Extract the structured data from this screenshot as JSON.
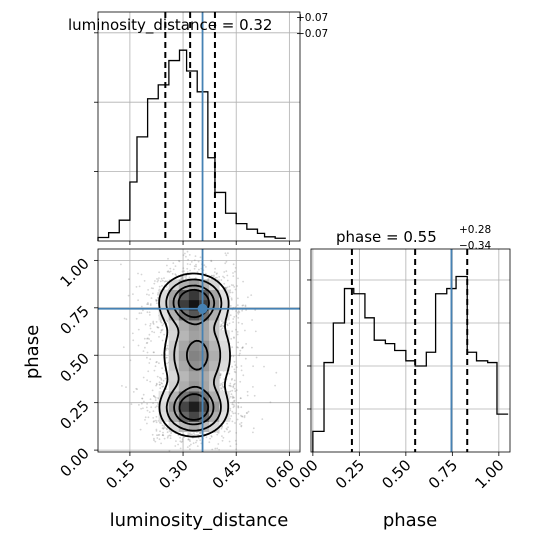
{
  "chart_data": [
    {
      "type": "histogram",
      "panel": "top-left",
      "title": {
        "param": "luminosity_distance",
        "median": "0.32",
        "plus": "+0.07",
        "minus": "−0.07"
      },
      "xlim": [
        0.06,
        0.63
      ],
      "ylim": [
        0,
        0.33
      ],
      "bin_edges": [
        0.06,
        0.09,
        0.12,
        0.15,
        0.17,
        0.2,
        0.23,
        0.26,
        0.29,
        0.31,
        0.34,
        0.37,
        0.39,
        0.42,
        0.45,
        0.48,
        0.51,
        0.53,
        0.56,
        0.59
      ],
      "counts": [
        0.005,
        0.012,
        0.03,
        0.085,
        0.15,
        0.205,
        0.225,
        0.26,
        0.275,
        0.245,
        0.215,
        0.12,
        0.07,
        0.04,
        0.025,
        0.017,
        0.011,
        0.006,
        0.004
      ],
      "quantiles": [
        0.25,
        0.32,
        0.39
      ],
      "truth": 0.355,
      "truth_color": "#4682b4"
    },
    {
      "type": "histogram",
      "panel": "bottom-right",
      "title": {
        "param": "phase",
        "median": "0.55",
        "plus": "+0.28",
        "minus": "−0.34"
      },
      "xlim": [
        -0.01,
        1.06
      ],
      "ylim": [
        0,
        1.18
      ],
      "xticks": [
        "0.00",
        "0.25",
        "0.50",
        "0.75",
        "1.00"
      ],
      "xticks_values": [
        0,
        0.25,
        0.5,
        0.75,
        1.0
      ],
      "xlabel": "phase",
      "bin_edges": [
        0.0,
        0.06,
        0.11,
        0.17,
        0.22,
        0.28,
        0.33,
        0.39,
        0.44,
        0.5,
        0.55,
        0.61,
        0.66,
        0.72,
        0.77,
        0.83,
        0.88,
        0.94,
        0.99,
        1.05
      ],
      "counts": [
        0.12,
        0.52,
        0.75,
        0.95,
        0.92,
        0.78,
        0.65,
        0.63,
        0.59,
        0.53,
        0.5,
        0.58,
        0.92,
        0.95,
        1.02,
        0.58,
        0.53,
        0.52,
        0.22
      ],
      "quantiles": [
        0.21,
        0.55,
        0.83
      ],
      "truth": 0.745,
      "truth_color": "#4682b4"
    },
    {
      "type": "corner-2d",
      "panel": "bottom-left",
      "xlabel": "luminosity_distance",
      "ylabel": "phase",
      "xlim": [
        0.06,
        0.63
      ],
      "ylim": [
        -0.01,
        1.06
      ],
      "xticks": [
        "0.15",
        "0.30",
        "0.45",
        "0.60"
      ],
      "xticks_values": [
        0.15,
        0.3,
        0.45,
        0.6
      ],
      "yticks": [
        "0.00",
        "0.25",
        "0.50",
        "0.75",
        "1.00"
      ],
      "yticks_values": [
        0,
        0.25,
        0.5,
        0.75,
        1.0
      ],
      "truth": {
        "luminosity_distance": 0.355,
        "phase": 0.745
      },
      "truth_color": "#4682b4",
      "density_peaks": [
        {
          "x": 0.33,
          "y": 0.78,
          "sx": 0.045,
          "sy": 0.07,
          "w": 1.0
        },
        {
          "x": 0.33,
          "y": 0.22,
          "sx": 0.045,
          "sy": 0.07,
          "w": 0.95
        },
        {
          "x": 0.34,
          "y": 0.5,
          "sx": 0.05,
          "sy": 0.12,
          "w": 0.55
        }
      ],
      "contour_levels": [
        0.35,
        0.55,
        0.78,
        0.92
      ]
    }
  ]
}
